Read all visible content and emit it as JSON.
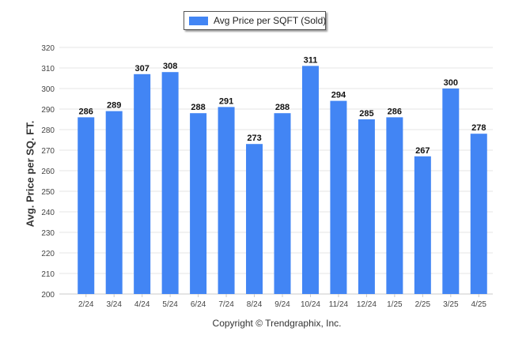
{
  "chart_data": {
    "type": "bar",
    "categories": [
      "2/24",
      "3/24",
      "4/24",
      "5/24",
      "6/24",
      "7/24",
      "8/24",
      "9/24",
      "10/24",
      "11/24",
      "12/24",
      "1/25",
      "2/25",
      "3/25",
      "4/25"
    ],
    "series": [
      {
        "name": "Avg Price per SQFT (Sold)",
        "values": [
          286,
          289,
          307,
          308,
          288,
          291,
          273,
          288,
          311,
          294,
          285,
          286,
          267,
          300,
          278
        ]
      }
    ],
    "ylabel": "Avg. Price per SQ. FT.",
    "xlabel": "",
    "ylim": [
      200,
      320
    ],
    "yticks": [
      200,
      210,
      220,
      230,
      240,
      250,
      260,
      270,
      280,
      290,
      300,
      310,
      320
    ],
    "grid": true,
    "legend": "top-center",
    "bar_color": "#4285f4"
  },
  "footer": {
    "copyright": "Copyright © Trendgraphix, Inc."
  }
}
